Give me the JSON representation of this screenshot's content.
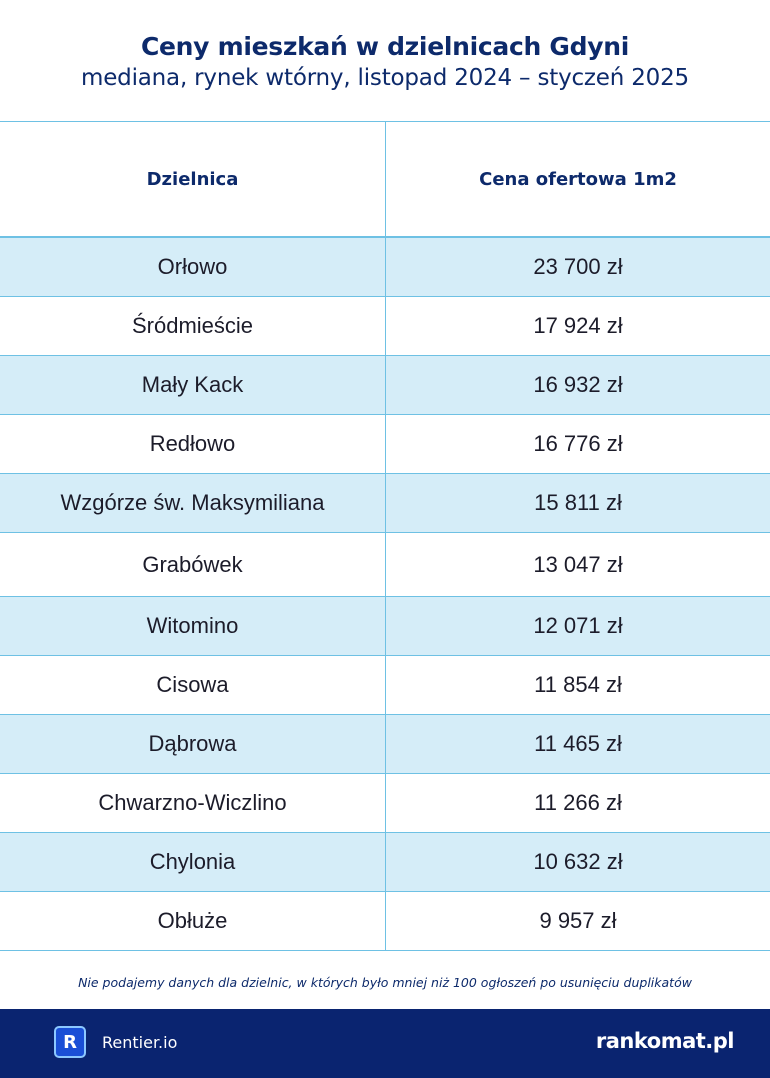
{
  "header": {
    "title": "Ceny mieszkań w dzielnicach Gdyni",
    "subtitle": "mediana, rynek wtórny, listopad 2024 – styczeń 2025"
  },
  "table": {
    "columns": [
      "Dzielnica",
      "Cena  ofertowa 1m2"
    ],
    "rows": [
      {
        "district": "Orłowo",
        "price": "23 700 zł"
      },
      {
        "district": "Śródmieście",
        "price": "17 924  zł"
      },
      {
        "district": "Mały Kack",
        "price": "16 932 zł"
      },
      {
        "district": "Redłowo",
        "price": "16 776 zł"
      },
      {
        "district": "Wzgórze św. Maksymiliana",
        "price": "15 811 zł"
      },
      {
        "district": "Grabówek",
        "price": "13 047 zł"
      },
      {
        "district": "Witomino",
        "price": "12 071 zł"
      },
      {
        "district": "Cisowa",
        "price": "11 854 zł"
      },
      {
        "district": "Dąbrowa",
        "price": "11 465 zł"
      },
      {
        "district": "Chwarzno-Wiczlino",
        "price": "11 266 zł"
      },
      {
        "district": "Chylonia",
        "price": "10 632 zł"
      },
      {
        "district": "Obłuże",
        "price": "9 957 zł"
      }
    ]
  },
  "note": "Nie podajemy danych dla dzielnic, w których było mniej niż 100 ogłoszeń po usunięciu duplikatów",
  "footer": {
    "left_logo_letter": "R",
    "left_brand": "Rentier.io",
    "right_brand": "rankomat.pl"
  },
  "colors": {
    "brand_navy": "#0a2470",
    "title_navy": "#0d2a6b",
    "row_alt_bg": "#d5edf8",
    "border": "#6ec1e4"
  }
}
